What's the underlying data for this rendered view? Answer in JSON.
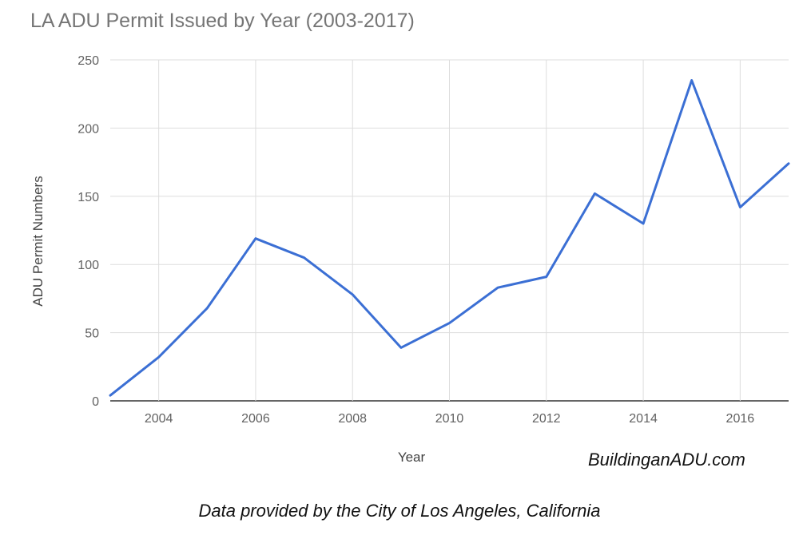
{
  "colors": {
    "line": "#3b6fd4",
    "grid": "#dddddd",
    "baseline": "#333333"
  },
  "chart_data": {
    "type": "line",
    "title": "LA ADU Permit Issued by Year (2003-2017)",
    "xlabel": "Year",
    "ylabel": "ADU Permit Numbers",
    "x": [
      2003,
      2004,
      2005,
      2006,
      2007,
      2008,
      2009,
      2010,
      2011,
      2012,
      2013,
      2014,
      2015,
      2016,
      2017
    ],
    "series": [
      {
        "values": [
          4,
          32,
          68,
          119,
          105,
          78,
          39,
          57,
          83,
          91,
          152,
          130,
          235,
          142,
          174
        ]
      }
    ],
    "xlim": [
      2003,
      2017
    ],
    "ylim": [
      0,
      250
    ],
    "xticks": [
      2004,
      2006,
      2008,
      2010,
      2012,
      2014,
      2016
    ],
    "yticks": [
      0,
      50,
      100,
      150,
      200,
      250
    ],
    "grid": true
  },
  "watermark": "BuildinganADU.com",
  "source_note": "Data provided by the City of Los Angeles, California"
}
